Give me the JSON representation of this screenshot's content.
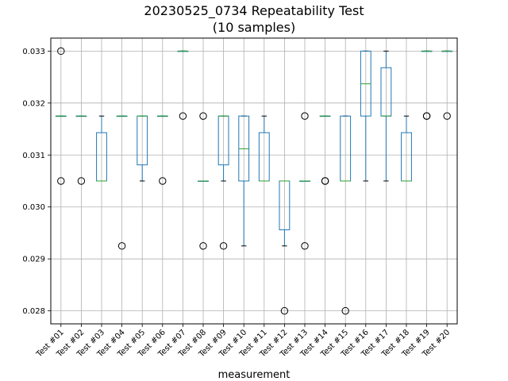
{
  "chart_data": {
    "type": "box",
    "title": "20230525_0734 Repeatability Test",
    "subtitle": "(10 samples)",
    "xlabel": "measurement",
    "ylabel": "",
    "ylim": [
      0.02775,
      0.03325
    ],
    "yticks": [
      "0.028",
      "0.029",
      "0.030",
      "0.031",
      "0.032",
      "0.033"
    ],
    "ytick_values": [
      0.028,
      0.029,
      0.03,
      0.031,
      0.032,
      0.033
    ],
    "grid": true,
    "colors": {
      "box": "#1f77b4",
      "median": "#2ca02c",
      "whisker": "#000000",
      "grid": "#b0b0b0"
    },
    "categories": [
      "Test #01",
      "Test #02",
      "Test #03",
      "Test #04",
      "Test #05",
      "Test #06",
      "Test #07",
      "Test #08",
      "Test #09",
      "Test #10",
      "Test #11",
      "Test #12",
      "Test #13",
      "Test #14",
      "Test #15",
      "Test #16",
      "Test #17",
      "Test #18",
      "Test #19",
      "Test #20"
    ],
    "boxes": [
      {
        "q1": 0.03175,
        "median": 0.03175,
        "q3": 0.03175,
        "whislo": 0.03175,
        "whishi": 0.03175,
        "fliers": [
          0.033,
          0.0305
        ]
      },
      {
        "q1": 0.03175,
        "median": 0.03175,
        "q3": 0.03175,
        "whislo": 0.03175,
        "whishi": 0.03175,
        "fliers": [
          0.0305
        ]
      },
      {
        "q1": 0.0305,
        "median": 0.0305,
        "q3": 0.03143,
        "whislo": 0.0305,
        "whishi": 0.03175,
        "fliers": []
      },
      {
        "q1": 0.03175,
        "median": 0.03175,
        "q3": 0.03175,
        "whislo": 0.03175,
        "whishi": 0.03175,
        "fliers": [
          0.02925
        ]
      },
      {
        "q1": 0.03081,
        "median": 0.03175,
        "q3": 0.03175,
        "whislo": 0.0305,
        "whishi": 0.03175,
        "fliers": []
      },
      {
        "q1": 0.03175,
        "median": 0.03175,
        "q3": 0.03175,
        "whislo": 0.03175,
        "whishi": 0.03175,
        "fliers": [
          0.0305
        ]
      },
      {
        "q1": 0.033,
        "median": 0.033,
        "q3": 0.033,
        "whislo": 0.033,
        "whishi": 0.033,
        "fliers": [
          0.03175
        ]
      },
      {
        "q1": 0.0305,
        "median": 0.0305,
        "q3": 0.0305,
        "whislo": 0.0305,
        "whishi": 0.0305,
        "fliers": [
          0.03175,
          0.02925
        ]
      },
      {
        "q1": 0.03081,
        "median": 0.03175,
        "q3": 0.03175,
        "whislo": 0.0305,
        "whishi": 0.03175,
        "fliers": [
          0.02925
        ]
      },
      {
        "q1": 0.0305,
        "median": 0.03112,
        "q3": 0.03175,
        "whislo": 0.02925,
        "whishi": 0.03175,
        "fliers": []
      },
      {
        "q1": 0.0305,
        "median": 0.0305,
        "q3": 0.03143,
        "whislo": 0.0305,
        "whishi": 0.03175,
        "fliers": []
      },
      {
        "q1": 0.02956,
        "median": 0.0305,
        "q3": 0.0305,
        "whislo": 0.02925,
        "whishi": 0.0305,
        "fliers": [
          0.028
        ]
      },
      {
        "q1": 0.0305,
        "median": 0.0305,
        "q3": 0.0305,
        "whislo": 0.0305,
        "whishi": 0.0305,
        "fliers": [
          0.03175,
          0.02925
        ]
      },
      {
        "q1": 0.03175,
        "median": 0.03175,
        "q3": 0.03175,
        "whislo": 0.03175,
        "whishi": 0.03175,
        "fliers": [
          0.0305,
          0.0305
        ]
      },
      {
        "q1": 0.0305,
        "median": 0.0305,
        "q3": 0.03175,
        "whislo": 0.0305,
        "whishi": 0.03175,
        "fliers": [
          0.028
        ]
      },
      {
        "q1": 0.03175,
        "median": 0.03237,
        "q3": 0.033,
        "whislo": 0.0305,
        "whishi": 0.033,
        "fliers": []
      },
      {
        "q1": 0.03175,
        "median": 0.03175,
        "q3": 0.03268,
        "whislo": 0.0305,
        "whishi": 0.033,
        "fliers": []
      },
      {
        "q1": 0.0305,
        "median": 0.0305,
        "q3": 0.03143,
        "whislo": 0.0305,
        "whishi": 0.03175,
        "fliers": []
      },
      {
        "q1": 0.033,
        "median": 0.033,
        "q3": 0.033,
        "whislo": 0.033,
        "whishi": 0.033,
        "fliers": [
          0.03175,
          0.03175
        ]
      },
      {
        "q1": 0.033,
        "median": 0.033,
        "q3": 0.033,
        "whislo": 0.033,
        "whishi": 0.033,
        "fliers": [
          0.03175
        ]
      }
    ]
  }
}
